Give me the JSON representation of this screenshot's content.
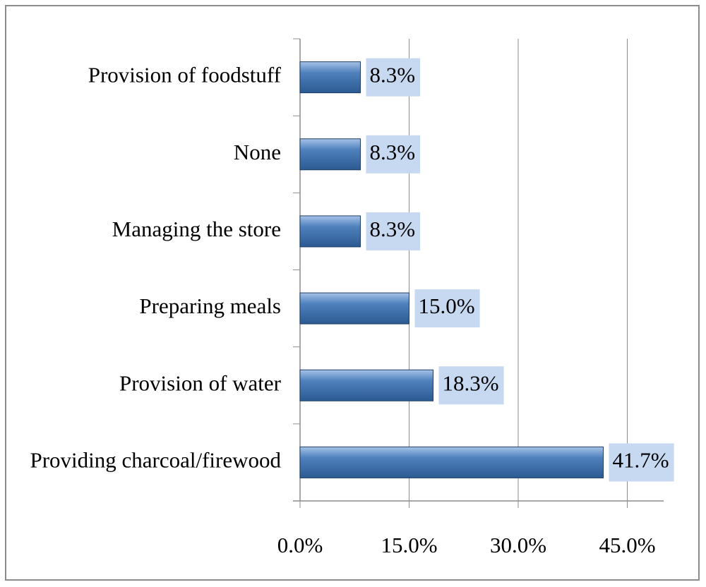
{
  "chart_data": {
    "type": "barh",
    "categories": [
      "Provision of foodstuff",
      "None",
      "Managing the store",
      "Preparing meals",
      "Provision of water",
      "Providing charcoal/firewood"
    ],
    "values": [
      8.3,
      8.3,
      8.3,
      15.0,
      18.3,
      41.7
    ],
    "value_labels": [
      "8.3%",
      "8.3%",
      "8.3%",
      "15.0%",
      "18.3%",
      "41.7%"
    ],
    "color": "#4f81bd",
    "xlim": [
      0,
      50
    ],
    "xticks": [
      {
        "value": 0,
        "label": "0.0%"
      },
      {
        "value": 15,
        "label": "15.0%"
      },
      {
        "value": 30,
        "label": "30.0%"
      },
      {
        "value": 45,
        "label": "45.0%"
      }
    ],
    "grid": true
  }
}
